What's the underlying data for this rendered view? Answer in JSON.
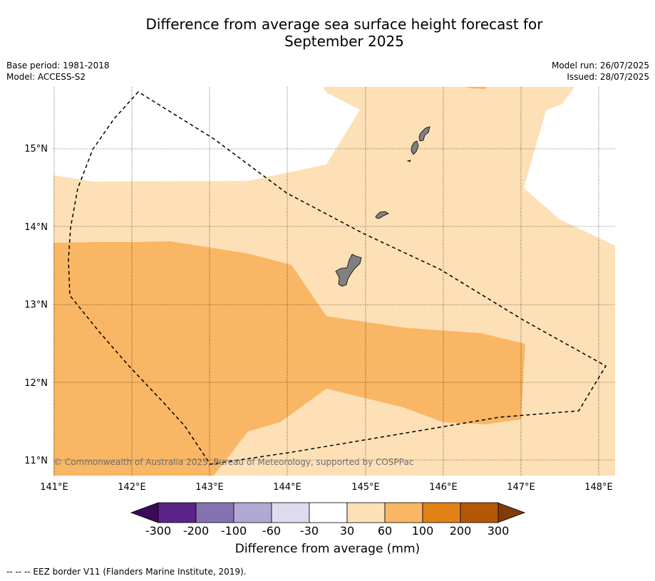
{
  "title_line1": "Difference from average sea surface height forecast for",
  "title_line2": "September 2025",
  "meta_left": {
    "base_period": "Base period: 1981-2018",
    "model": "Model: ACCESS-S2"
  },
  "meta_right": {
    "model_run": "Model run: 26/07/2025",
    "issued": "Issued: 28/07/2025"
  },
  "map": {
    "lon_labels": [
      "141°E",
      "142°E",
      "143°E",
      "144°E",
      "145°E",
      "146°E",
      "147°E",
      "148°E"
    ],
    "lat_labels": [
      "15°N",
      "14°N",
      "13°N",
      "12°N",
      "11°N"
    ],
    "copyright": "© Commonwealth of Australia 2025, Bureau of Meteorology, supported by COSPPac",
    "land_color": "#808080",
    "eez_line_style": "dashed black"
  },
  "colorbar": {
    "title": "Difference from average (mm)",
    "tick_labels": [
      "-300",
      "-200",
      "-100",
      "-60",
      "-30",
      "30",
      "60",
      "100",
      "200",
      "300"
    ],
    "colors": [
      "#3b0a5a",
      "#5a2489",
      "#8473b0",
      "#b1a9d3",
      "#dcdcee",
      "#ffffff",
      "#fde0b6",
      "#f9b664",
      "#e08214",
      "#b35806",
      "#7f3b08"
    ]
  },
  "footnote": "--  --  -- EEZ border V11 (Flanders Marine Institute, 2019)."
}
